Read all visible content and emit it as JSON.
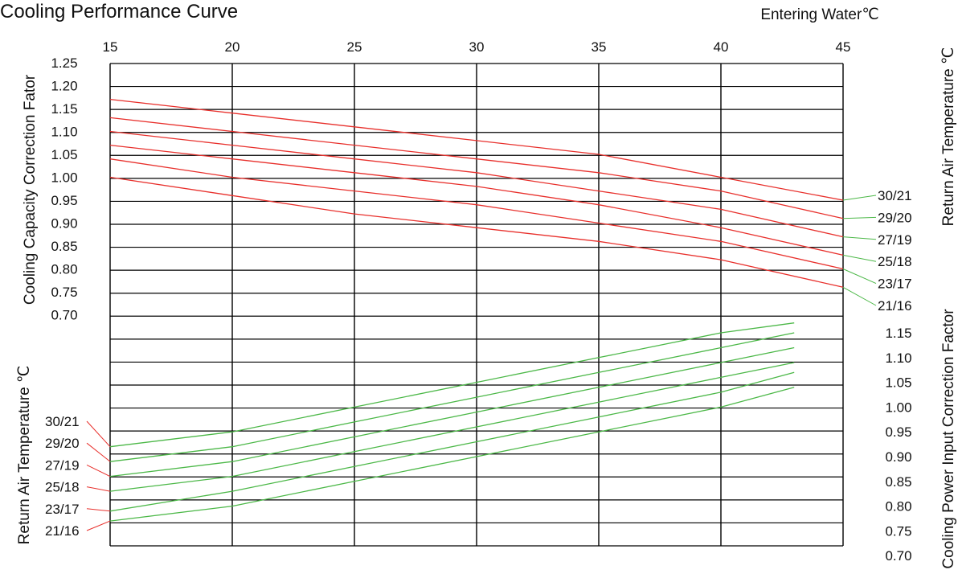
{
  "chart_data": {
    "type": "line",
    "title": "Cooling Performance Curve",
    "title_color": "#2aa8a0",
    "x": {
      "label": "Entering Water℃",
      "range": [
        15,
        45
      ],
      "ticks": [
        15,
        20,
        25,
        30,
        35,
        40,
        45
      ]
    },
    "left_axis": {
      "label": "Cooling Capacity Correction Fator",
      "range": [
        0.7,
        1.25
      ],
      "ticks": [
        "1.25",
        "1.20",
        "1.15",
        "1.10",
        "1.05",
        "1.00",
        "0.95",
        "0.90",
        "0.85",
        "0.80",
        "0.75",
        "0.70"
      ]
    },
    "right_axis": {
      "label": "Cooling Power Input Correction Factor",
      "range": [
        0.7,
        1.15
      ],
      "ticks": [
        "1.15",
        "1.10",
        "1.05",
        "1.00",
        "0.95",
        "0.90",
        "0.85",
        "0.80",
        "0.75",
        "0.70"
      ]
    },
    "series_label_title": "Return Air Temperature ℃",
    "grid": true,
    "capacity_color": "#e8302c",
    "power_color": "#4cb848",
    "capacity_series": [
      {
        "name": "30/21",
        "x": [
          15,
          20,
          25,
          30,
          35,
          40,
          45
        ],
        "values": [
          1.17,
          1.14,
          1.11,
          1.08,
          1.05,
          1.0,
          0.95
        ]
      },
      {
        "name": "29/20",
        "x": [
          15,
          20,
          25,
          30,
          35,
          40,
          45
        ],
        "values": [
          1.13,
          1.1,
          1.07,
          1.04,
          1.01,
          0.97,
          0.91
        ]
      },
      {
        "name": "27/19",
        "x": [
          15,
          20,
          25,
          30,
          35,
          40,
          45
        ],
        "values": [
          1.1,
          1.07,
          1.04,
          1.01,
          0.97,
          0.93,
          0.87
        ]
      },
      {
        "name": "25/18",
        "x": [
          15,
          20,
          25,
          30,
          35,
          40,
          45
        ],
        "values": [
          1.07,
          1.04,
          1.01,
          0.98,
          0.94,
          0.89,
          0.83
        ]
      },
      {
        "name": "23/17",
        "x": [
          15,
          20,
          25,
          30,
          35,
          40,
          45
        ],
        "values": [
          1.04,
          1.0,
          0.97,
          0.94,
          0.9,
          0.86,
          0.8
        ]
      },
      {
        "name": "21/16",
        "x": [
          15,
          20,
          25,
          30,
          35,
          40,
          45
        ],
        "values": [
          1.0,
          0.96,
          0.92,
          0.89,
          0.86,
          0.82,
          0.76
        ]
      }
    ],
    "power_series": [
      {
        "name": "30/21",
        "x": [
          15,
          20,
          25,
          30,
          35,
          40,
          43
        ],
        "values": [
          0.92,
          0.95,
          1.0,
          1.05,
          1.1,
          1.15,
          1.17
        ]
      },
      {
        "name": "29/20",
        "x": [
          15,
          20,
          25,
          30,
          35,
          40,
          43
        ],
        "values": [
          0.89,
          0.92,
          0.97,
          1.02,
          1.07,
          1.12,
          1.15
        ]
      },
      {
        "name": "27/19",
        "x": [
          15,
          20,
          25,
          30,
          35,
          40,
          43
        ],
        "values": [
          0.86,
          0.89,
          0.94,
          0.99,
          1.04,
          1.09,
          1.12
        ]
      },
      {
        "name": "25/18",
        "x": [
          15,
          20,
          25,
          30,
          35,
          40,
          43
        ],
        "values": [
          0.83,
          0.86,
          0.91,
          0.96,
          1.01,
          1.06,
          1.09
        ]
      },
      {
        "name": "23/17",
        "x": [
          15,
          20,
          25,
          30,
          35,
          40,
          43
        ],
        "values": [
          0.79,
          0.83,
          0.88,
          0.93,
          0.98,
          1.03,
          1.07
        ]
      },
      {
        "name": "21/16",
        "x": [
          15,
          20,
          25,
          30,
          35,
          40,
          43
        ],
        "values": [
          0.77,
          0.8,
          0.85,
          0.9,
          0.95,
          1.0,
          1.04
        ]
      }
    ]
  }
}
